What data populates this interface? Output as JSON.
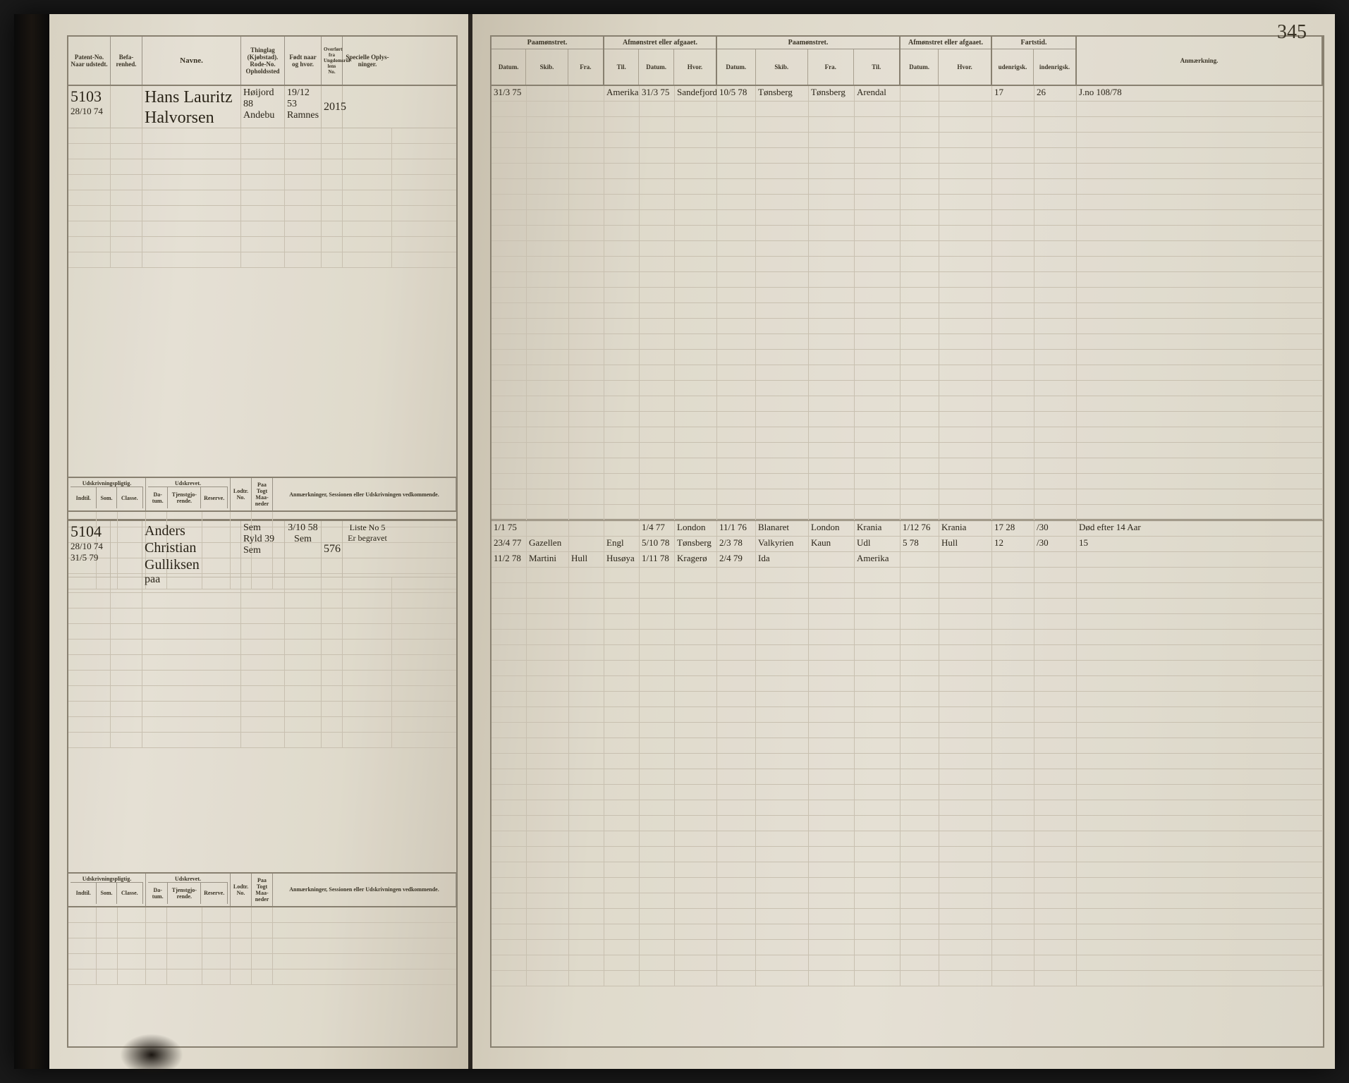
{
  "page_number": "345",
  "colors": {
    "paper": "#e2ddd0",
    "paper_dark": "#d2ccbc",
    "ink": "#2a2418",
    "rule_dark": "#888070",
    "rule_light": "#c8c0b0",
    "binding": "#1a1510"
  },
  "typography": {
    "header_fontsize": 9,
    "handwriting_fontsize": 18,
    "name_fontsize": 24
  },
  "left_headers": {
    "patent": "Patent-No.\nNaar udstedt.",
    "befarenhet": "Befa-\nrenhed.",
    "navne": "Navne.",
    "thinglag": "Thinglag\n(Kjøbstad).\nRode-No.\nOpholdssted",
    "fodt": "Født naar\nog hvor.",
    "overfort": "Overført fra\nUngdomsrul-\nlens No.",
    "specielle": "Specielle Oplys-\nninger."
  },
  "left_subheaders": {
    "udskrivning": "Udskrivningspligtig.",
    "udskrevet": "Udskrevet.",
    "indtil": "Indtil.",
    "som": "Som.",
    "classe": "Classe.",
    "datum": "Da-\ntum.",
    "tjenst": "Tjenstgjo-\nrende.",
    "reserve": "Reserve.",
    "lodtr": "Lodtr.\nNo.",
    "paa": "Paa\nTogt\nMaa-\nneder",
    "anm": "Anmærkninger,\nSessionen eller Udskrivningen vedkommende."
  },
  "right_headers": {
    "paamonstret": "Paamønstret.",
    "afmonstret1": "Afmønstret eller\nafgaaet.",
    "paamonstret2": "Paamønstret.",
    "afmonstret2": "Afmønstret eller\nafgaaet.",
    "fartstid": "Fartstid.",
    "anmaerkning": "Anmærkning.",
    "datum": "Datum.",
    "skib": "Skib.",
    "fra": "Fra.",
    "til": "Til.",
    "hvor": "Hvor.",
    "udenrigsk": "udenrigsk.",
    "indenrigsk": "indenrigsk."
  },
  "records": [
    {
      "patent_no": "5103",
      "patent_date": "28/10 74",
      "name_line1": "Hans Lauritz",
      "name_line2": "Halvorsen",
      "thinglag1": "Høijord",
      "thinglag2": "88",
      "thinglag3": "Andebu",
      "fodt1": "19/12 53",
      "fodt2": "Ramnes",
      "overfort": "2015",
      "paamonstret": [
        {
          "datum": "31/3 75",
          "skib": "",
          "fra": ""
        }
      ],
      "afmonstret1": [
        {
          "til": "Amerika",
          "datum": "31/3 75",
          "hvor": "Sandefjord"
        }
      ],
      "paamonstret2": [
        {
          "datum": "10/5 78",
          "skib": "Tønsberg",
          "fra": "Tønsberg",
          "til": "Arendal"
        }
      ],
      "fartstid": [
        {
          "uden": "17",
          "inden": "26"
        }
      ],
      "anmaerkning": [
        "J.no 108/78"
      ]
    },
    {
      "patent_no": "5104",
      "patent_date": "28/10 74",
      "patent_note": "31/5 79",
      "name_line1": "Anders Christian",
      "name_line2": "Gulliksen",
      "name_line3": "paa",
      "thinglag1": "Sem",
      "thinglag2": "Ryld 39",
      "thinglag3": "Sem",
      "fodt1": "3/10 58",
      "fodt2": "Sem",
      "overfort": "576",
      "specielle": [
        "Liste No 5",
        "Er begravet"
      ],
      "paamonstret": [
        {
          "datum": "1/1 75",
          "skib": "",
          "fra": ""
        },
        {
          "datum": "23/4 77",
          "skib": "Gazellen",
          "fra": ""
        },
        {
          "datum": "11/2 78",
          "skib": "Martini",
          "fra": "Hull"
        }
      ],
      "afmonstret1": [
        {
          "til": "",
          "datum": "1/4 77",
          "hvor": "London"
        },
        {
          "til": "Engl",
          "datum": "5/10 78",
          "hvor": "Tønsberg"
        },
        {
          "til": "Husøya",
          "datum": "1/11 78",
          "hvor": "Kragerø"
        }
      ],
      "paamonstret2": [
        {
          "datum": "11/1 76",
          "skib": "Blanaret",
          "fra": "London",
          "til": "Krania"
        },
        {
          "datum": "2/3 78",
          "skib": "Valkyrien",
          "fra": "Kaun",
          "til": "Udl"
        },
        {
          "datum": "2/4 79",
          "skib": "Ida",
          "fra": "",
          "til": "Amerika"
        }
      ],
      "afmonstret2": [
        {
          "datum": "1/12 76",
          "hvor": "Krania"
        },
        {
          "datum": "5 78",
          "hvor": "Hull"
        }
      ],
      "fartstid": [
        {
          "uden": "17 28",
          "inden": "/30"
        },
        {
          "uden": "12",
          "inden": "/30"
        }
      ],
      "anmaerkning": [
        "Død efter 14 Aar",
        "15"
      ]
    }
  ]
}
